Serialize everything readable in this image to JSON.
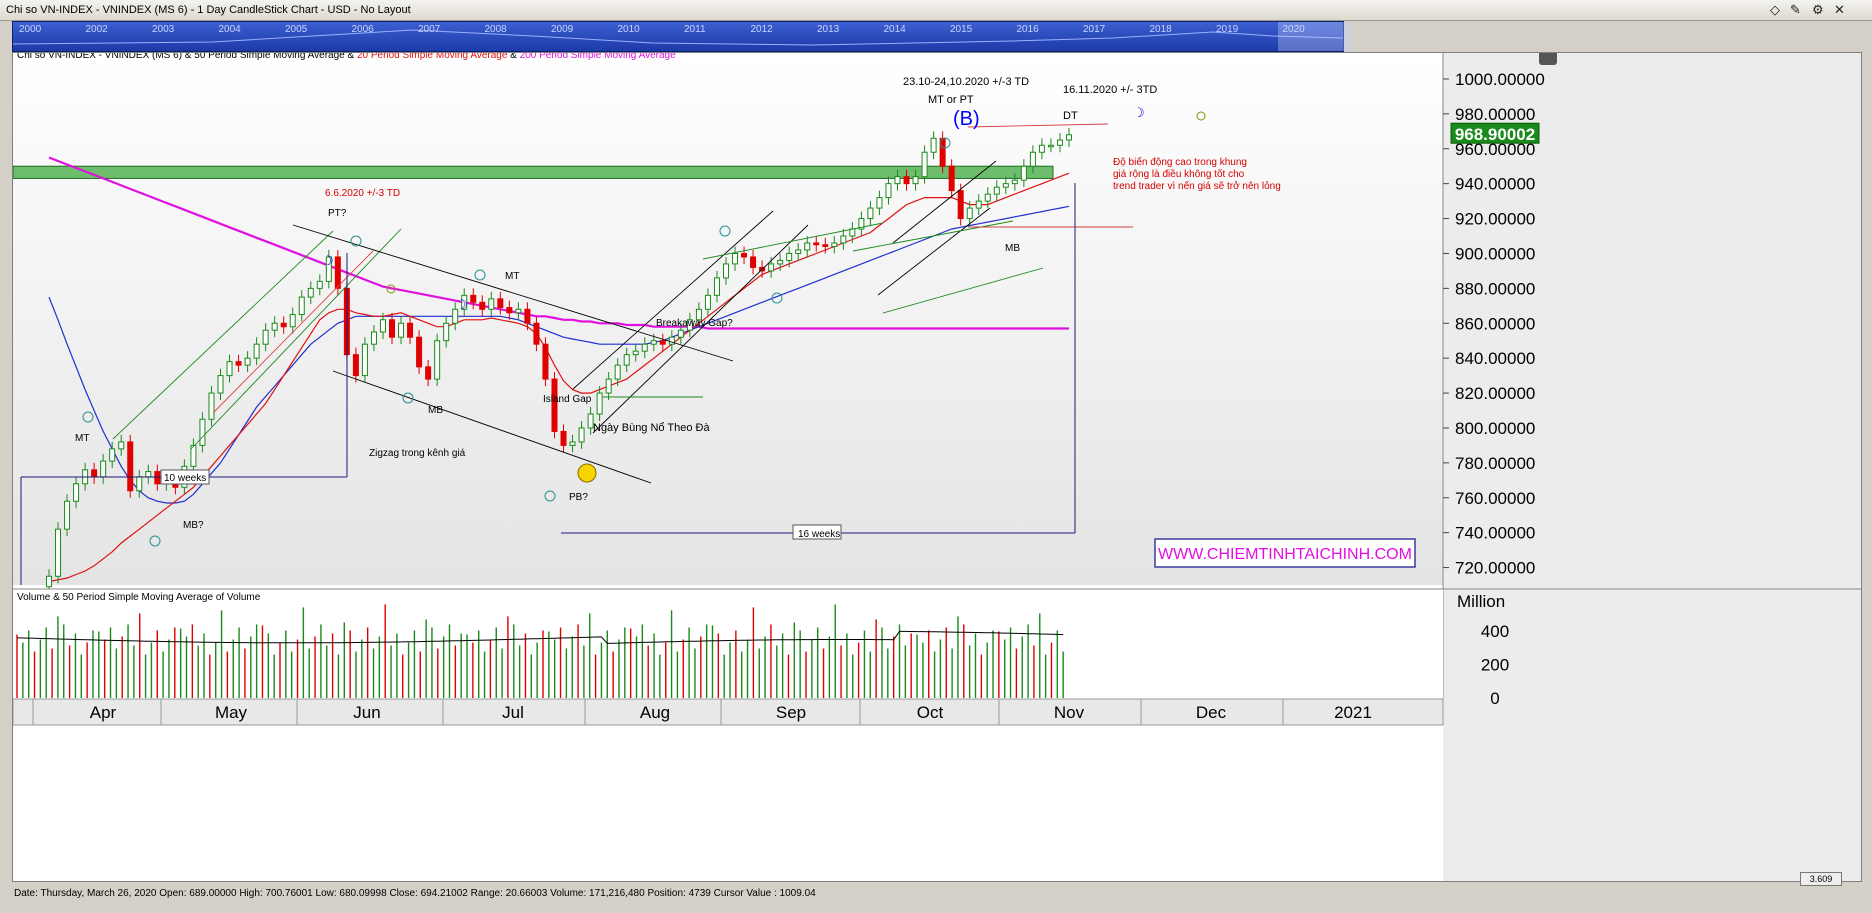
{
  "window": {
    "title": "Chi so VN-INDEX - VNINDEX (MS 6) - 1 Day CandleStick Chart - USD - No Layout"
  },
  "navigator": {
    "years": [
      "2000",
      "2002",
      "2003",
      "2004",
      "2005",
      "2006",
      "2007",
      "2008",
      "2009",
      "2010",
      "2011",
      "2012",
      "2013",
      "2014",
      "2015",
      "2016",
      "2017",
      "2018",
      "2019",
      "2020"
    ]
  },
  "status_bar": "Date: Thursday, March 26, 2020 Open: 689.00000 High: 700.76001 Low: 680.09998 Close: 694.21002 Range: 20.66003 Volume: 171,216,480 Position: 4739 Cursor Value : 1009.04",
  "zoom": "3.609",
  "chart_data": {
    "type": "candlestick",
    "legend": {
      "prefix": "Chi so VN-INDEX - VNINDEX (MS 6) & 50 Period Simple Moving Average & ",
      "ma20": "20 Period Simple Moving Average",
      "amp": " & ",
      "ma200": "200 Period Simple Moving Average"
    },
    "price_axis": {
      "ticks": [
        "1000.00000",
        "980.00000",
        "960.00000",
        "940.00000",
        "920.00000",
        "900.00000",
        "880.00000",
        "860.00000",
        "840.00000",
        "820.00000",
        "800.00000",
        "780.00000",
        "760.00000",
        "740.00000",
        "720.00000"
      ],
      "ylim": [
        710,
        1008
      ]
    },
    "last_price": "968.90002",
    "months": [
      "Apr",
      "May",
      "Jun",
      "Jul",
      "Aug",
      "Sep",
      "Oct",
      "Nov",
      "Dec",
      "2021"
    ],
    "closes": [
      715,
      742,
      758,
      768,
      776,
      772,
      781,
      788,
      792,
      764,
      772,
      775,
      768,
      770,
      766,
      778,
      790,
      805,
      820,
      830,
      838,
      836,
      840,
      848,
      856,
      860,
      858,
      865,
      875,
      880,
      884,
      898,
      880,
      842,
      830,
      848,
      855,
      862,
      852,
      860,
      852,
      835,
      828,
      850,
      860,
      868,
      876,
      872,
      868,
      874,
      869,
      866,
      868,
      860,
      848,
      828,
      798,
      790,
      792,
      800,
      808,
      820,
      828,
      836,
      842,
      844,
      848,
      850,
      848,
      852,
      856,
      862,
      868,
      876,
      886,
      894,
      900,
      898,
      892,
      890,
      894,
      896,
      900,
      902,
      906,
      905,
      904,
      906,
      910,
      914,
      920,
      926,
      932,
      940,
      944,
      940,
      944,
      958,
      966,
      950,
      936,
      920,
      926,
      930,
      934,
      938,
      940,
      942,
      950,
      958,
      962,
      962,
      965,
      968
    ],
    "ma20": [
      712,
      713,
      714,
      716,
      718,
      721,
      725,
      729,
      734,
      738,
      742,
      746,
      750,
      754,
      758,
      762,
      766,
      772,
      778,
      784,
      790,
      796,
      802,
      808,
      814,
      822,
      830,
      838,
      846,
      854,
      862,
      866,
      868,
      868,
      866,
      865,
      864,
      864,
      865,
      866,
      864,
      862,
      860,
      858,
      858,
      860,
      862,
      862,
      862,
      863,
      862,
      861,
      860,
      858,
      854,
      846,
      836,
      827,
      822,
      820,
      820,
      822,
      824,
      826,
      828,
      832,
      836,
      840,
      844,
      848,
      852,
      856,
      860,
      864,
      868,
      872,
      876,
      880,
      884,
      888,
      890,
      892,
      894,
      896,
      898,
      900,
      902,
      904,
      906,
      908,
      910,
      912,
      916,
      920,
      924,
      928,
      930,
      932,
      932,
      932,
      932,
      930,
      928,
      928,
      928,
      930,
      932,
      934,
      936,
      938,
      940,
      942,
      944,
      946
    ],
    "ma50": [
      875,
      862,
      848,
      835,
      822,
      810,
      798,
      788,
      778,
      770,
      764,
      760,
      758,
      757,
      757,
      758,
      762,
      768,
      774,
      780,
      788,
      796,
      804,
      812,
      818,
      824,
      830,
      836,
      842,
      848,
      852,
      856,
      860,
      862,
      864,
      864,
      864,
      864,
      864,
      864,
      864,
      864,
      864,
      864,
      864,
      864,
      864,
      864,
      864,
      864,
      864,
      863,
      862,
      860,
      858,
      856,
      854,
      852,
      851,
      850,
      849,
      848,
      848,
      848,
      848,
      848,
      848,
      849,
      850,
      852,
      854,
      856,
      858,
      860,
      862,
      864,
      866,
      868,
      870,
      872,
      874,
      876,
      878,
      880,
      882,
      884,
      886,
      888,
      890,
      892,
      894,
      896,
      898,
      900,
      902,
      904,
      906,
      908,
      910,
      912,
      914,
      915,
      916,
      917,
      918,
      919,
      920,
      921,
      922,
      923,
      924,
      925,
      926,
      927
    ],
    "ma200": [
      955,
      953,
      951,
      949,
      947,
      945,
      943,
      941,
      939,
      937,
      935,
      933,
      931,
      929,
      927,
      925,
      923,
      921,
      919,
      917,
      915,
      913,
      911,
      909,
      907,
      905,
      903,
      901,
      899,
      897,
      895,
      893,
      891,
      889,
      887,
      885,
      883,
      881,
      880,
      879,
      878,
      877,
      876,
      875,
      874,
      873,
      872,
      871,
      870,
      869,
      868,
      867,
      866,
      865,
      864,
      864,
      863,
      862,
      862,
      861,
      861,
      860,
      860,
      860,
      859,
      859,
      859,
      858,
      858,
      858,
      858,
      858,
      858,
      857,
      857,
      857,
      857,
      857,
      857,
      857,
      857,
      857,
      857,
      857,
      857,
      857,
      857,
      857,
      857,
      857,
      857,
      857,
      857,
      857,
      857,
      857,
      857,
      857,
      857,
      857,
      857,
      857,
      857,
      857,
      857,
      857,
      857,
      857,
      857,
      857,
      857,
      857,
      857,
      857
    ],
    "volume_axis": {
      "label": "Million",
      "ticks": [
        "400",
        "200",
        "0"
      ],
      "ylim": [
        0,
        640
      ]
    },
    "annotations": [
      {
        "text": "23.10-24,10.2020  +/-3 TD",
        "color": "#000000"
      },
      {
        "text": "MT or PT",
        "color": "#000000"
      },
      {
        "text": "(B)",
        "color": "#0000ff"
      },
      {
        "text": "16.11.2020 +/- 3TD",
        "color": "#000000"
      },
      {
        "text": "DT",
        "color": "#000000"
      },
      {
        "text": "6.6.2020 +/-3 TD",
        "color": "#d40000"
      },
      {
        "text": "PT?",
        "color": "#000000"
      },
      {
        "text": "MT",
        "color": "#000000"
      },
      {
        "text": "MT",
        "color": "#000000"
      },
      {
        "text": "MB?",
        "color": "#000000"
      },
      {
        "text": "MB",
        "color": "#000000"
      },
      {
        "text": "MB",
        "color": "#000000"
      },
      {
        "text": "Zigzag trong kênh giá",
        "color": "#000000"
      },
      {
        "text": "Breakaway Gap?",
        "color": "#000000"
      },
      {
        "text": "Island Gap",
        "color": "#000000"
      },
      {
        "text": "Ngày Bùng Nổ Theo Đà",
        "color": "#000000"
      },
      {
        "text": "PB?",
        "color": "#000000"
      },
      {
        "text": "10 weeks",
        "color": "#000000"
      },
      {
        "text": "16 weeks",
        "color": "#000000"
      }
    ],
    "note_lines": [
      "Độ biến động cao trong khung",
      "giá rộng là điều không tốt cho",
      "trend trader vì nến giá sẽ trở nên lỏng"
    ],
    "watermark": "WWW.CHIEMTINHTAICHINH.COM",
    "volume_legend": "Volume & 50 Period Simple Moving Average of Volume",
    "colors": {
      "up": "#1a8a1a",
      "down": "#e00000",
      "ma50": "#1f2fd0",
      "ma20": "#e01010",
      "ma200": "#e010e0"
    }
  }
}
